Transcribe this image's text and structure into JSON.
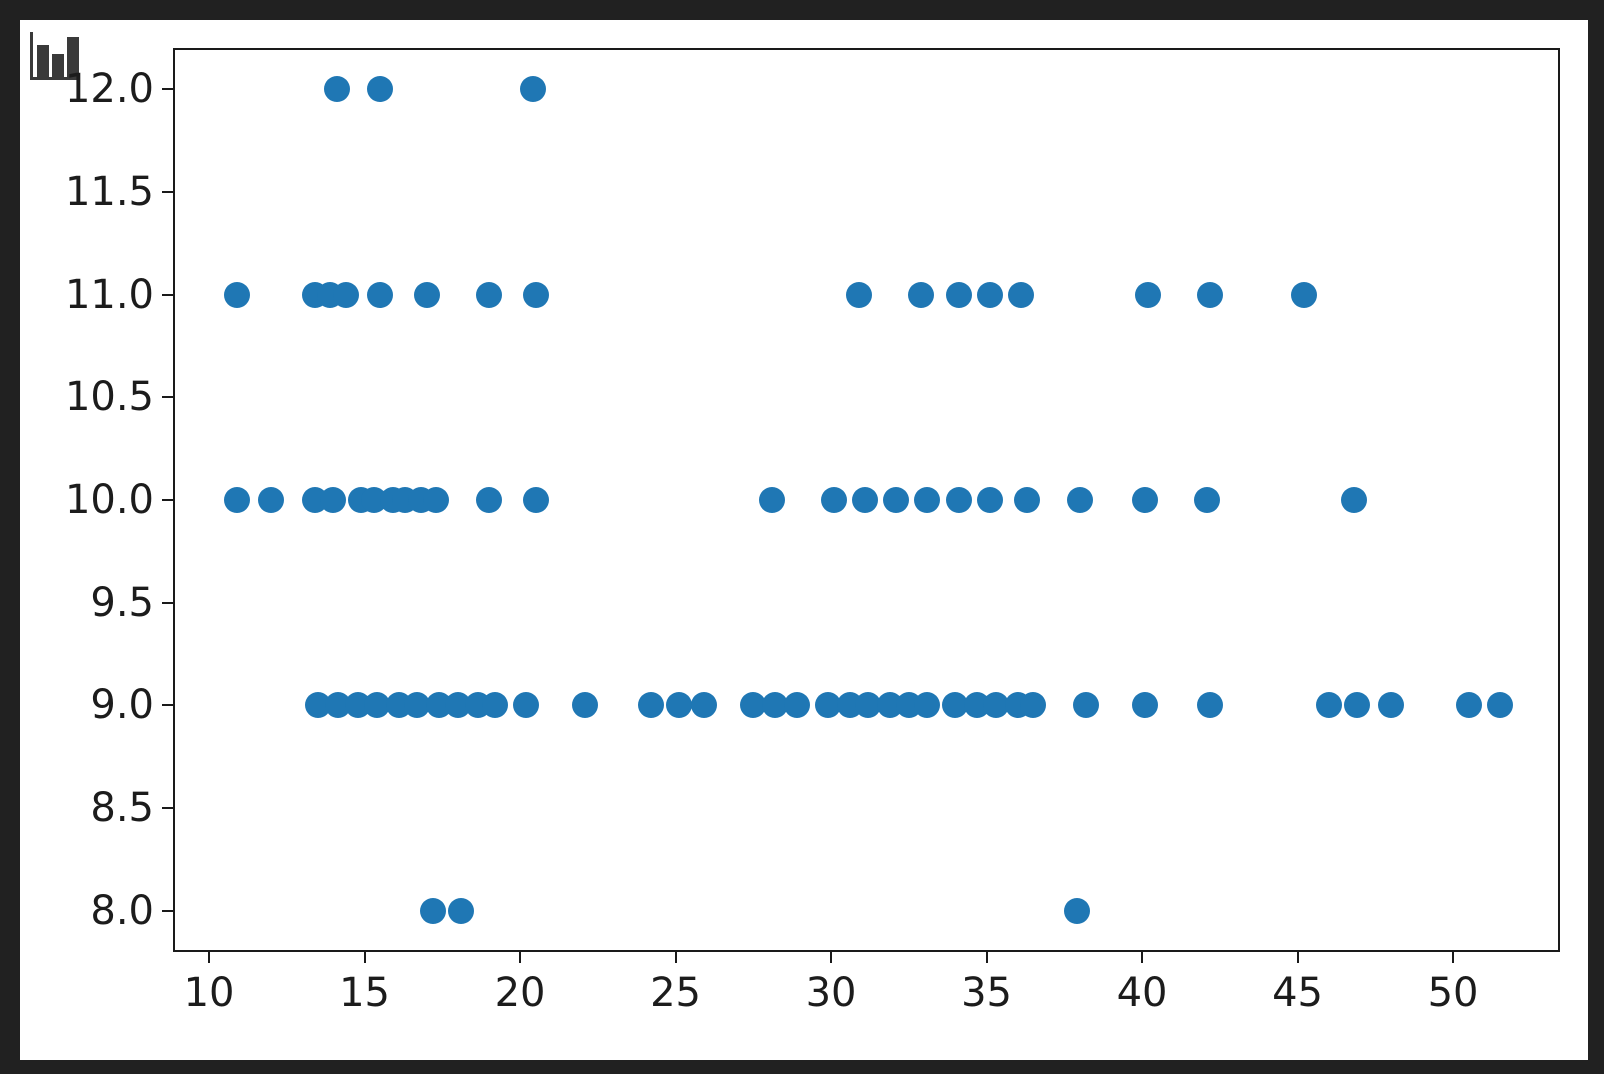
{
  "page": {
    "background_color": "#212121",
    "canvas_color": "#ffffff"
  },
  "icon": {
    "name": "bar-chart-icon",
    "color": "#3a3a3a"
  },
  "chart_data": {
    "type": "scatter",
    "title": "",
    "xlabel": "",
    "ylabel": "",
    "xlim": [
      8.84,
      53.44
    ],
    "ylim": [
      7.8,
      12.2
    ],
    "x_ticks": [
      10,
      15,
      20,
      25,
      30,
      35,
      40,
      45,
      50
    ],
    "x_tick_labels": [
      "10",
      "15",
      "20",
      "25",
      "30",
      "35",
      "40",
      "45",
      "50"
    ],
    "y_ticks": [
      8.0,
      8.5,
      9.0,
      9.5,
      10.0,
      10.5,
      11.0,
      11.5,
      12.0
    ],
    "y_tick_labels": [
      "8.0",
      "8.5",
      "9.0",
      "9.5",
      "10.0",
      "10.5",
      "11.0",
      "11.5",
      "12.0"
    ],
    "grid": false,
    "legend": null,
    "axis_color": "#1a1a1a",
    "tick_label_color": "#1c1c1c",
    "marker": {
      "color": "#1f77b4",
      "radius_px": 13
    },
    "series": [
      {
        "name": "series-0",
        "points": [
          [
            14.1,
            12
          ],
          [
            15.5,
            12
          ],
          [
            20.4,
            12
          ],
          [
            10.9,
            11
          ],
          [
            13.4,
            11
          ],
          [
            13.9,
            11
          ],
          [
            14.4,
            11
          ],
          [
            15.5,
            11
          ],
          [
            17.0,
            11
          ],
          [
            19.0,
            11
          ],
          [
            20.5,
            11
          ],
          [
            30.9,
            11
          ],
          [
            32.9,
            11
          ],
          [
            34.1,
            11
          ],
          [
            35.1,
            11
          ],
          [
            36.1,
            11
          ],
          [
            40.2,
            11
          ],
          [
            42.2,
            11
          ],
          [
            45.2,
            11
          ],
          [
            10.9,
            10
          ],
          [
            12.0,
            10
          ],
          [
            13.4,
            10
          ],
          [
            14.0,
            10
          ],
          [
            14.9,
            10
          ],
          [
            15.3,
            10
          ],
          [
            15.9,
            10
          ],
          [
            16.3,
            10
          ],
          [
            16.8,
            10
          ],
          [
            17.3,
            10
          ],
          [
            19.0,
            10
          ],
          [
            20.5,
            10
          ],
          [
            28.1,
            10
          ],
          [
            30.1,
            10
          ],
          [
            31.1,
            10
          ],
          [
            32.1,
            10
          ],
          [
            33.1,
            10
          ],
          [
            34.1,
            10
          ],
          [
            35.1,
            10
          ],
          [
            36.3,
            10
          ],
          [
            38.0,
            10
          ],
          [
            40.1,
            10
          ],
          [
            42.1,
            10
          ],
          [
            46.8,
            10
          ],
          [
            13.5,
            9
          ],
          [
            14.15,
            9
          ],
          [
            14.8,
            9
          ],
          [
            15.4,
            9
          ],
          [
            16.1,
            9
          ],
          [
            16.7,
            9
          ],
          [
            17.4,
            9
          ],
          [
            18.0,
            9
          ],
          [
            18.65,
            9
          ],
          [
            19.2,
            9
          ],
          [
            20.2,
            9
          ],
          [
            22.1,
            9
          ],
          [
            24.2,
            9
          ],
          [
            25.1,
            9
          ],
          [
            25.9,
            9
          ],
          [
            27.5,
            9
          ],
          [
            28.2,
            9
          ],
          [
            28.9,
            9
          ],
          [
            29.9,
            9
          ],
          [
            30.6,
            9
          ],
          [
            31.2,
            9
          ],
          [
            31.9,
            9
          ],
          [
            32.5,
            9
          ],
          [
            33.1,
            9
          ],
          [
            34.0,
            9
          ],
          [
            34.7,
            9
          ],
          [
            35.3,
            9
          ],
          [
            36.0,
            9
          ],
          [
            36.5,
            9
          ],
          [
            38.2,
            9
          ],
          [
            40.1,
            9
          ],
          [
            42.2,
            9
          ],
          [
            46.0,
            9
          ],
          [
            46.9,
            9
          ],
          [
            48.0,
            9
          ],
          [
            50.5,
            9
          ],
          [
            51.5,
            9
          ],
          [
            17.2,
            8
          ],
          [
            18.1,
            8
          ],
          [
            37.9,
            8
          ]
        ]
      }
    ]
  }
}
